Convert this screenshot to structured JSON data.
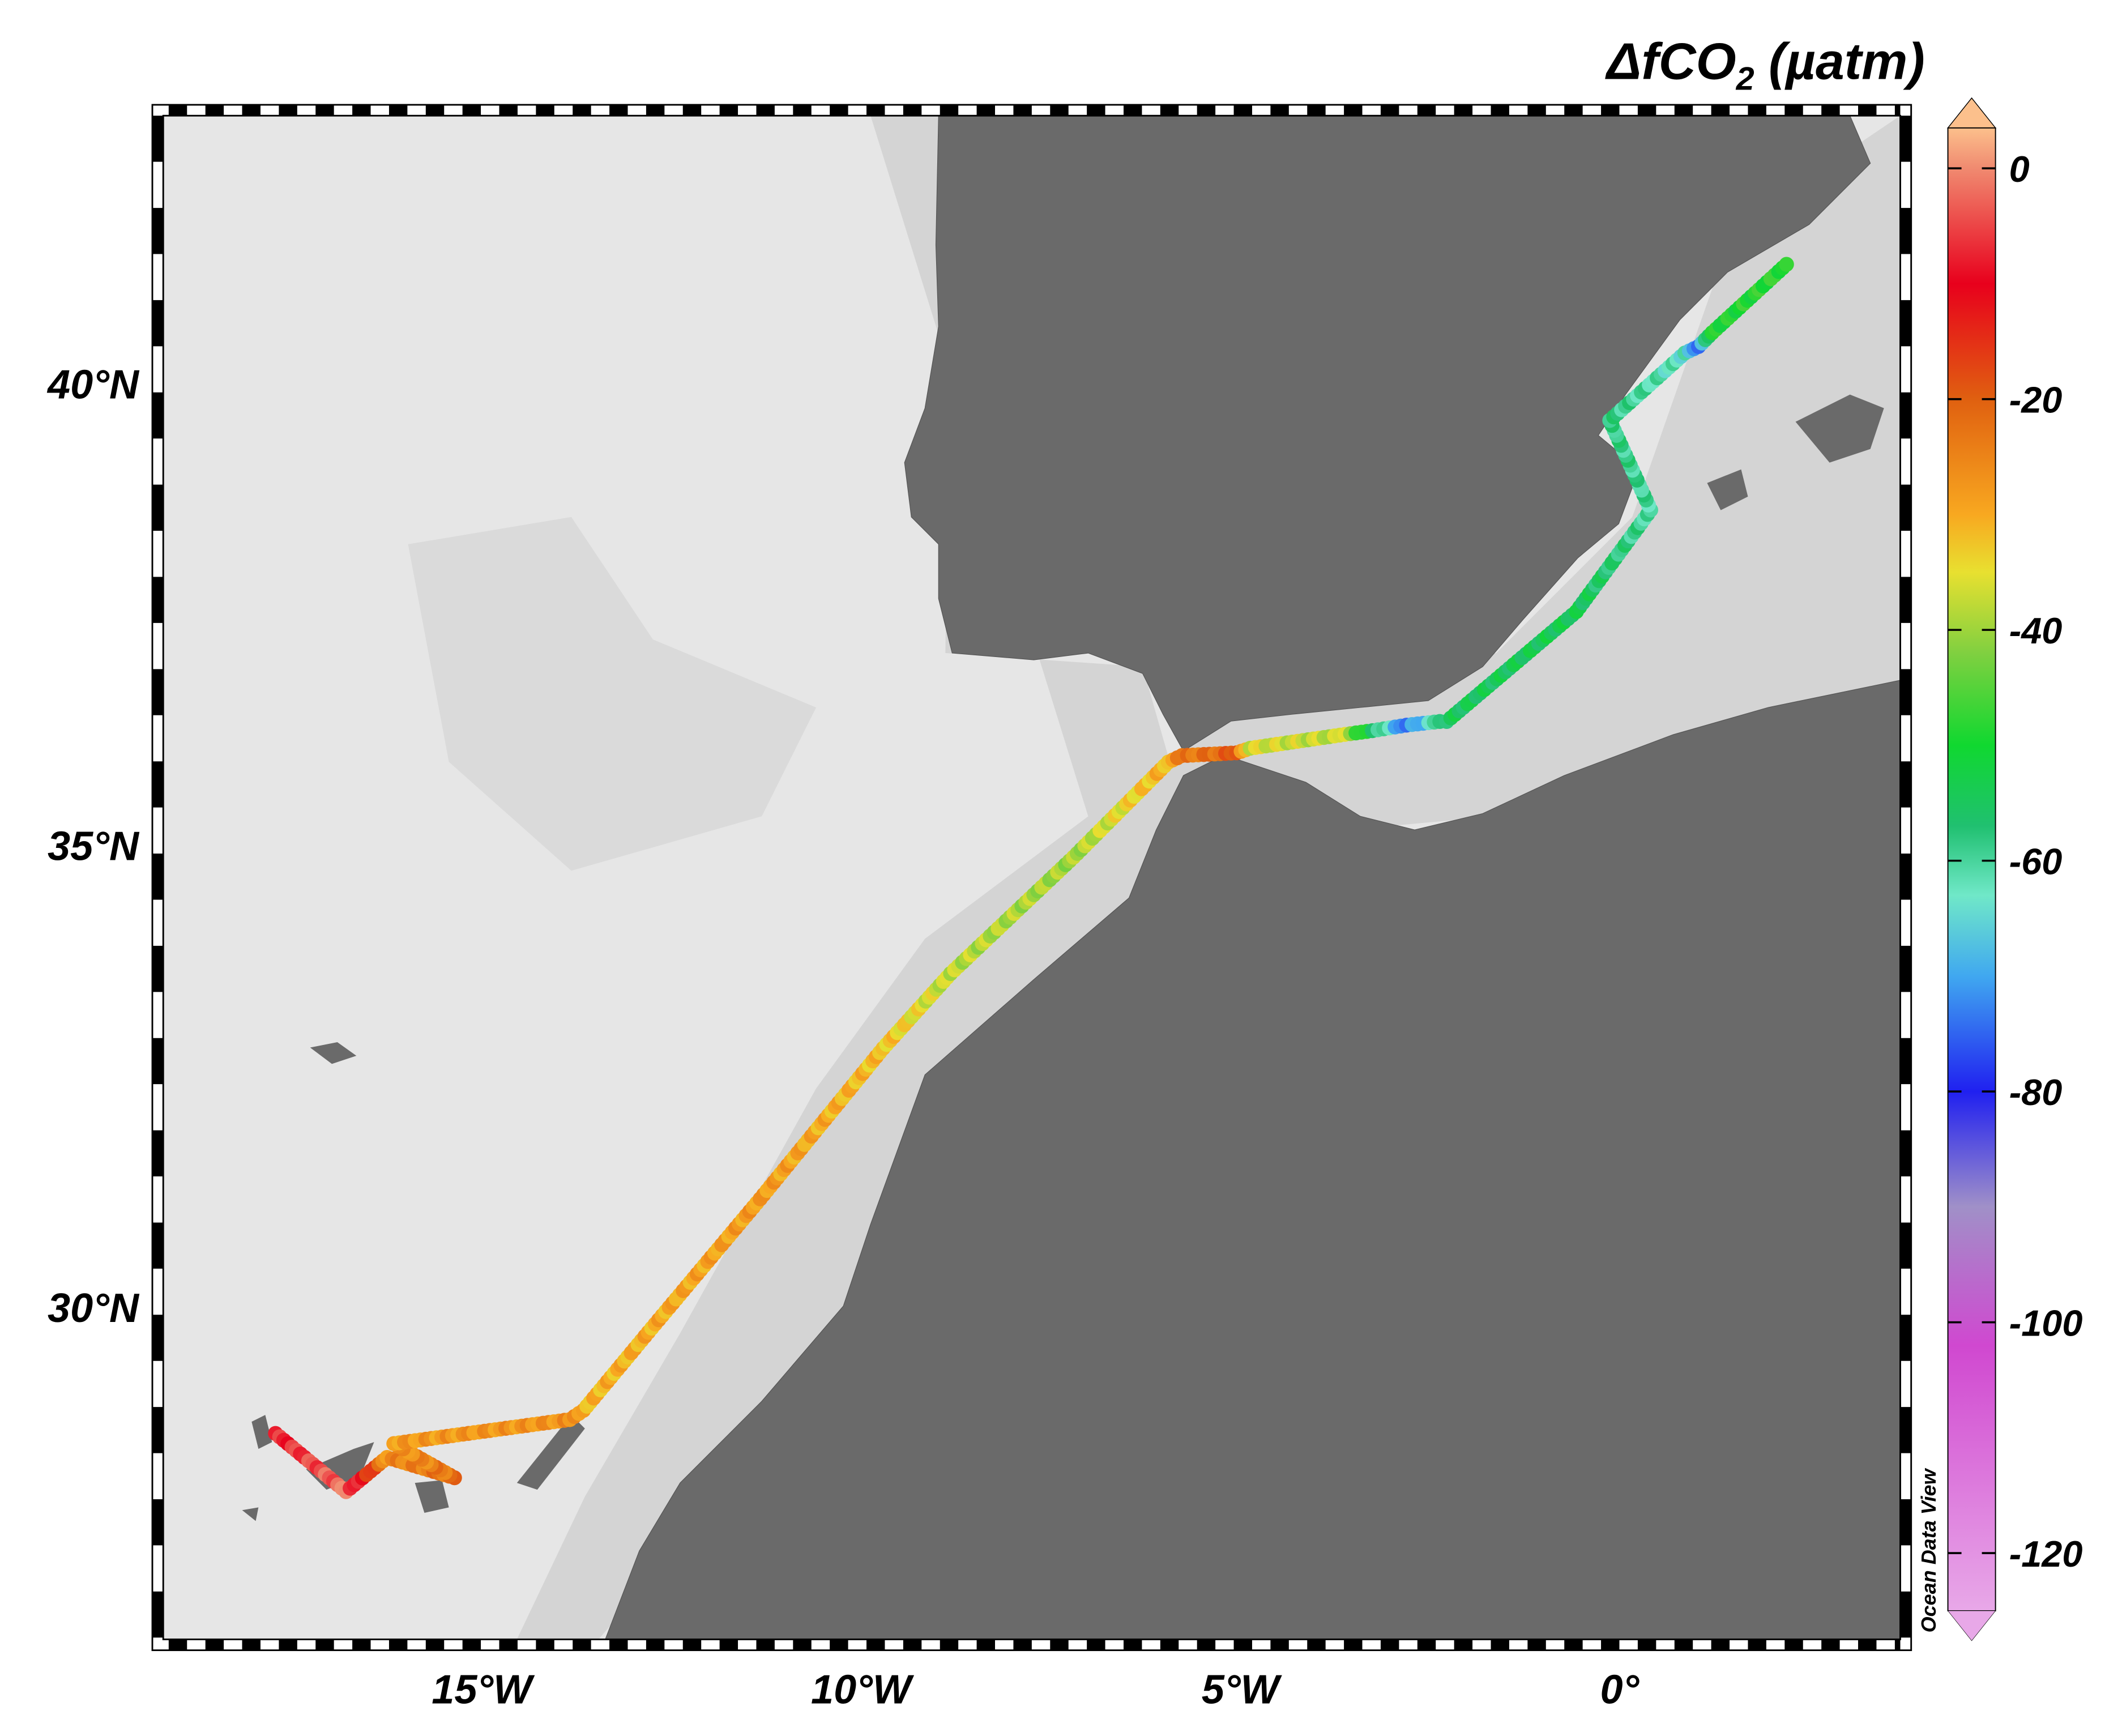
{
  "title": "ΔfCO",
  "title_sub": "2",
  "title_units": " (µatm)",
  "watermark": "Ocean Data View",
  "lon_labels": [
    {
      "lon": -15,
      "text": "15°W"
    },
    {
      "lon": -10,
      "text": "10°W"
    },
    {
      "lon": -5,
      "text": "5°W"
    },
    {
      "lon": 0,
      "text": "0°"
    }
  ],
  "lat_labels": [
    {
      "lat": 40,
      "text": "40°N"
    },
    {
      "lat": 35,
      "text": "35°N"
    },
    {
      "lat": 30,
      "text": "30°N"
    }
  ],
  "colorbar": {
    "range": [
      -125,
      3.5
    ],
    "ticks": [
      {
        "value": 0,
        "text": "0"
      },
      {
        "value": -20,
        "text": "-20"
      },
      {
        "value": -40,
        "text": "-40"
      },
      {
        "value": -60,
        "text": "-60"
      },
      {
        "value": -80,
        "text": "-80"
      },
      {
        "value": -100,
        "text": "-100"
      },
      {
        "value": -120,
        "text": "-120"
      }
    ],
    "stops": [
      {
        "value": 3.5,
        "color": "#fcc08c"
      },
      {
        "value": 0,
        "color": "#f08a70"
      },
      {
        "value": -10,
        "color": "#e8001c"
      },
      {
        "value": -20,
        "color": "#e06010"
      },
      {
        "value": -30,
        "color": "#f8a820"
      },
      {
        "value": -35,
        "color": "#e8e030"
      },
      {
        "value": -42,
        "color": "#80d040"
      },
      {
        "value": -50,
        "color": "#10d830"
      },
      {
        "value": -57,
        "color": "#20c070"
      },
      {
        "value": -63,
        "color": "#70e8c8"
      },
      {
        "value": -70,
        "color": "#40a8f0"
      },
      {
        "value": -80,
        "color": "#2020f0"
      },
      {
        "value": -90,
        "color": "#a090c8"
      },
      {
        "value": -102,
        "color": "#d048d0"
      },
      {
        "value": -125,
        "color": "#e8a8e8"
      }
    ]
  },
  "chart_data": {
    "type": "scatter",
    "title": "ΔfCO2 (µatm)",
    "xlim": [
      -19.2,
      3.7
    ],
    "ylim": [
      26.4,
      42.9
    ],
    "track": [
      {
        "lon": -17.72,
        "lat": 28.63,
        "value": -8
      },
      {
        "lon": -16.79,
        "lat": 28.0,
        "value": -2
      },
      {
        "lon": -16.25,
        "lat": 28.37,
        "value": -26
      },
      {
        "lon": -15.36,
        "lat": 28.15,
        "value": -22
      },
      {
        "lon": -16.16,
        "lat": 28.52,
        "value": -28
      },
      {
        "lon": -13.84,
        "lat": 28.78,
        "value": -27
      },
      {
        "lon": -13.66,
        "lat": 28.88,
        "value": -31
      },
      {
        "lon": -12.76,
        "lat": 29.77,
        "value": -30
      },
      {
        "lon": -11.33,
        "lat": 31.17,
        "value": -28
      },
      {
        "lon": -9.71,
        "lat": 32.8,
        "value": -32
      },
      {
        "lon": -8.82,
        "lat": 33.61,
        "value": -38
      },
      {
        "lon": -7.2,
        "lat": 34.87,
        "value": -40
      },
      {
        "lon": -5.95,
        "lat": 35.9,
        "value": -30
      },
      {
        "lon": -5.77,
        "lat": 35.97,
        "value": -24
      },
      {
        "lon": -5.05,
        "lat": 36.0,
        "value": -20
      },
      {
        "lon": -4.87,
        "lat": 36.05,
        "value": -36
      },
      {
        "lon": -3.62,
        "lat": 36.2,
        "value": -38
      },
      {
        "lon": -3.26,
        "lat": 36.24,
        "value": -55
      },
      {
        "lon": -2.81,
        "lat": 36.3,
        "value": -74
      },
      {
        "lon": -2.37,
        "lat": 36.34,
        "value": -60
      },
      {
        "lon": -2.28,
        "lat": 36.34,
        "value": -55
      },
      {
        "lon": -0.57,
        "lat": 37.53,
        "value": -54
      },
      {
        "lon": 0.41,
        "lat": 38.63,
        "value": -60
      },
      {
        "lon": -0.13,
        "lat": 39.6,
        "value": -58
      },
      {
        "lon": 0.86,
        "lat": 40.33,
        "value": -63
      },
      {
        "lon": 1.04,
        "lat": 40.4,
        "value": -72
      },
      {
        "lon": 1.22,
        "lat": 40.55,
        "value": -50
      },
      {
        "lon": 2.2,
        "lat": 41.29,
        "value": -48
      }
    ]
  }
}
